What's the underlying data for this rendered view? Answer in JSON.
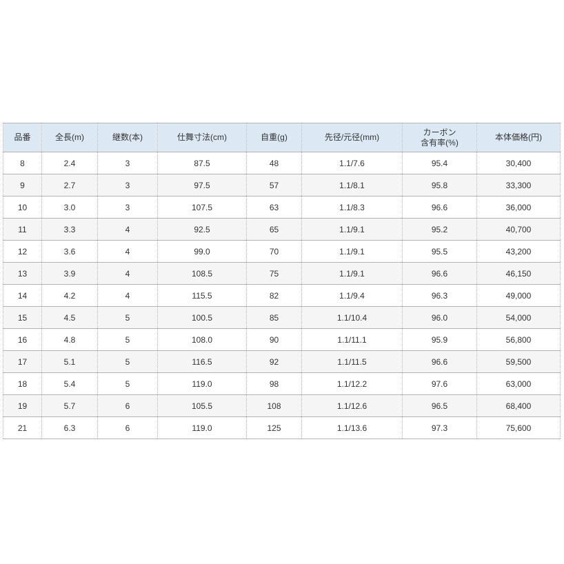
{
  "colors": {
    "header_bg": "#dce9f5",
    "row_bg": "#ffffff",
    "row_alt_bg": "#f5f5f5",
    "border": "#b6b6b6",
    "text": "#333333"
  },
  "table": {
    "headers": [
      "品番",
      "全長(m)",
      "継数(本)",
      "仕舞寸法(cm)",
      "自重(g)",
      "先径/元径(mm)",
      "カーボン\n含有率(%)",
      "本体価格(円)"
    ],
    "rows": [
      [
        "8",
        "2.4",
        "3",
        "87.5",
        "48",
        "1.1/7.6",
        "95.4",
        "30,400"
      ],
      [
        "9",
        "2.7",
        "3",
        "97.5",
        "57",
        "1.1/8.1",
        "95.8",
        "33,300"
      ],
      [
        "10",
        "3.0",
        "3",
        "107.5",
        "63",
        "1.1/8.3",
        "96.6",
        "36,000"
      ],
      [
        "11",
        "3.3",
        "4",
        "92.5",
        "65",
        "1.1/9.1",
        "95.2",
        "40,700"
      ],
      [
        "12",
        "3.6",
        "4",
        "99.0",
        "70",
        "1.1/9.1",
        "95.5",
        "43,200"
      ],
      [
        "13",
        "3.9",
        "4",
        "108.5",
        "75",
        "1.1/9.1",
        "96.6",
        "46,150"
      ],
      [
        "14",
        "4.2",
        "4",
        "115.5",
        "82",
        "1.1/9.4",
        "96.3",
        "49,000"
      ],
      [
        "15",
        "4.5",
        "5",
        "100.5",
        "85",
        "1.1/10.4",
        "96.0",
        "54,000"
      ],
      [
        "16",
        "4.8",
        "5",
        "108.0",
        "90",
        "1.1/11.1",
        "95.9",
        "56,800"
      ],
      [
        "17",
        "5.1",
        "5",
        "116.5",
        "92",
        "1.1/11.5",
        "96.6",
        "59,500"
      ],
      [
        "18",
        "5.4",
        "5",
        "119.0",
        "98",
        "1.1/12.2",
        "97.6",
        "63,000"
      ],
      [
        "19",
        "5.7",
        "6",
        "105.5",
        "108",
        "1.1/12.6",
        "96.5",
        "68,400"
      ],
      [
        "21",
        "6.3",
        "6",
        "119.0",
        "125",
        "1.1/13.6",
        "97.3",
        "75,600"
      ]
    ]
  }
}
